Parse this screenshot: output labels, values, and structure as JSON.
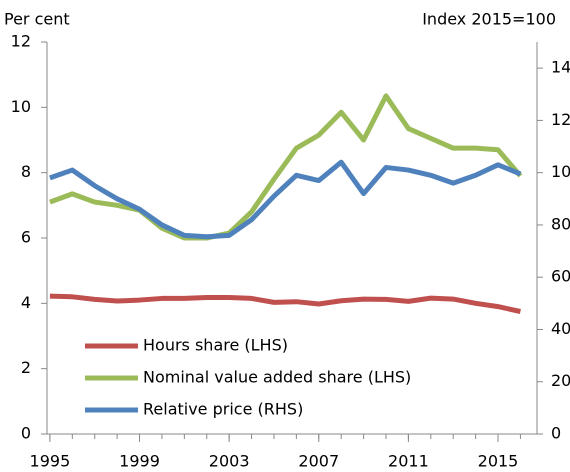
{
  "chart_data": {
    "type": "line",
    "y_label": "Per cent",
    "y2_label": "Index 2015=100",
    "x": [
      1995,
      1996,
      1997,
      1998,
      1999,
      2000,
      2001,
      2002,
      2003,
      2004,
      2005,
      2006,
      2007,
      2008,
      2009,
      2010,
      2011,
      2012,
      2013,
      2014,
      2015,
      2016
    ],
    "series": [
      {
        "name": "Hours share (LHS)",
        "color": "#c0504d",
        "axis": "y",
        "values": [
          4.22,
          4.2,
          4.12,
          4.07,
          4.1,
          4.15,
          4.15,
          4.18,
          4.18,
          4.15,
          4.03,
          4.05,
          3.98,
          4.08,
          4.13,
          4.12,
          4.06,
          4.16,
          4.13,
          4.0,
          3.9,
          3.75
        ]
      },
      {
        "name": "Nominal value added share (LHS)",
        "color": "#9bbb59",
        "axis": "y",
        "values": [
          7.1,
          7.35,
          7.1,
          7.0,
          6.85,
          6.3,
          6.0,
          6.0,
          6.15,
          6.8,
          7.8,
          8.75,
          9.15,
          9.85,
          9.0,
          10.35,
          9.35,
          9.05,
          8.75,
          8.75,
          8.7,
          7.9
        ]
      },
      {
        "name": "Relative price (RHS)",
        "color": "#4f81bd",
        "axis": "y2",
        "values": [
          98,
          101,
          95,
          90,
          86,
          80,
          76,
          75.5,
          76,
          82,
          91,
          99,
          97,
          104,
          92,
          102,
          101,
          99,
          96,
          99,
          103,
          99.5
        ]
      }
    ],
    "xlim": [
      1994.87,
      2016.74
    ],
    "xticks": [
      1995,
      1999,
      2003,
      2007,
      2011,
      2015
    ],
    "ylim": [
      0,
      12
    ],
    "yticks": [
      0,
      2,
      4,
      6,
      8,
      10,
      12
    ],
    "y2lim": [
      0,
      150
    ],
    "y2ticks": [
      0,
      20,
      40,
      60,
      80,
      100,
      120,
      140
    ],
    "legend": "lower-left"
  }
}
